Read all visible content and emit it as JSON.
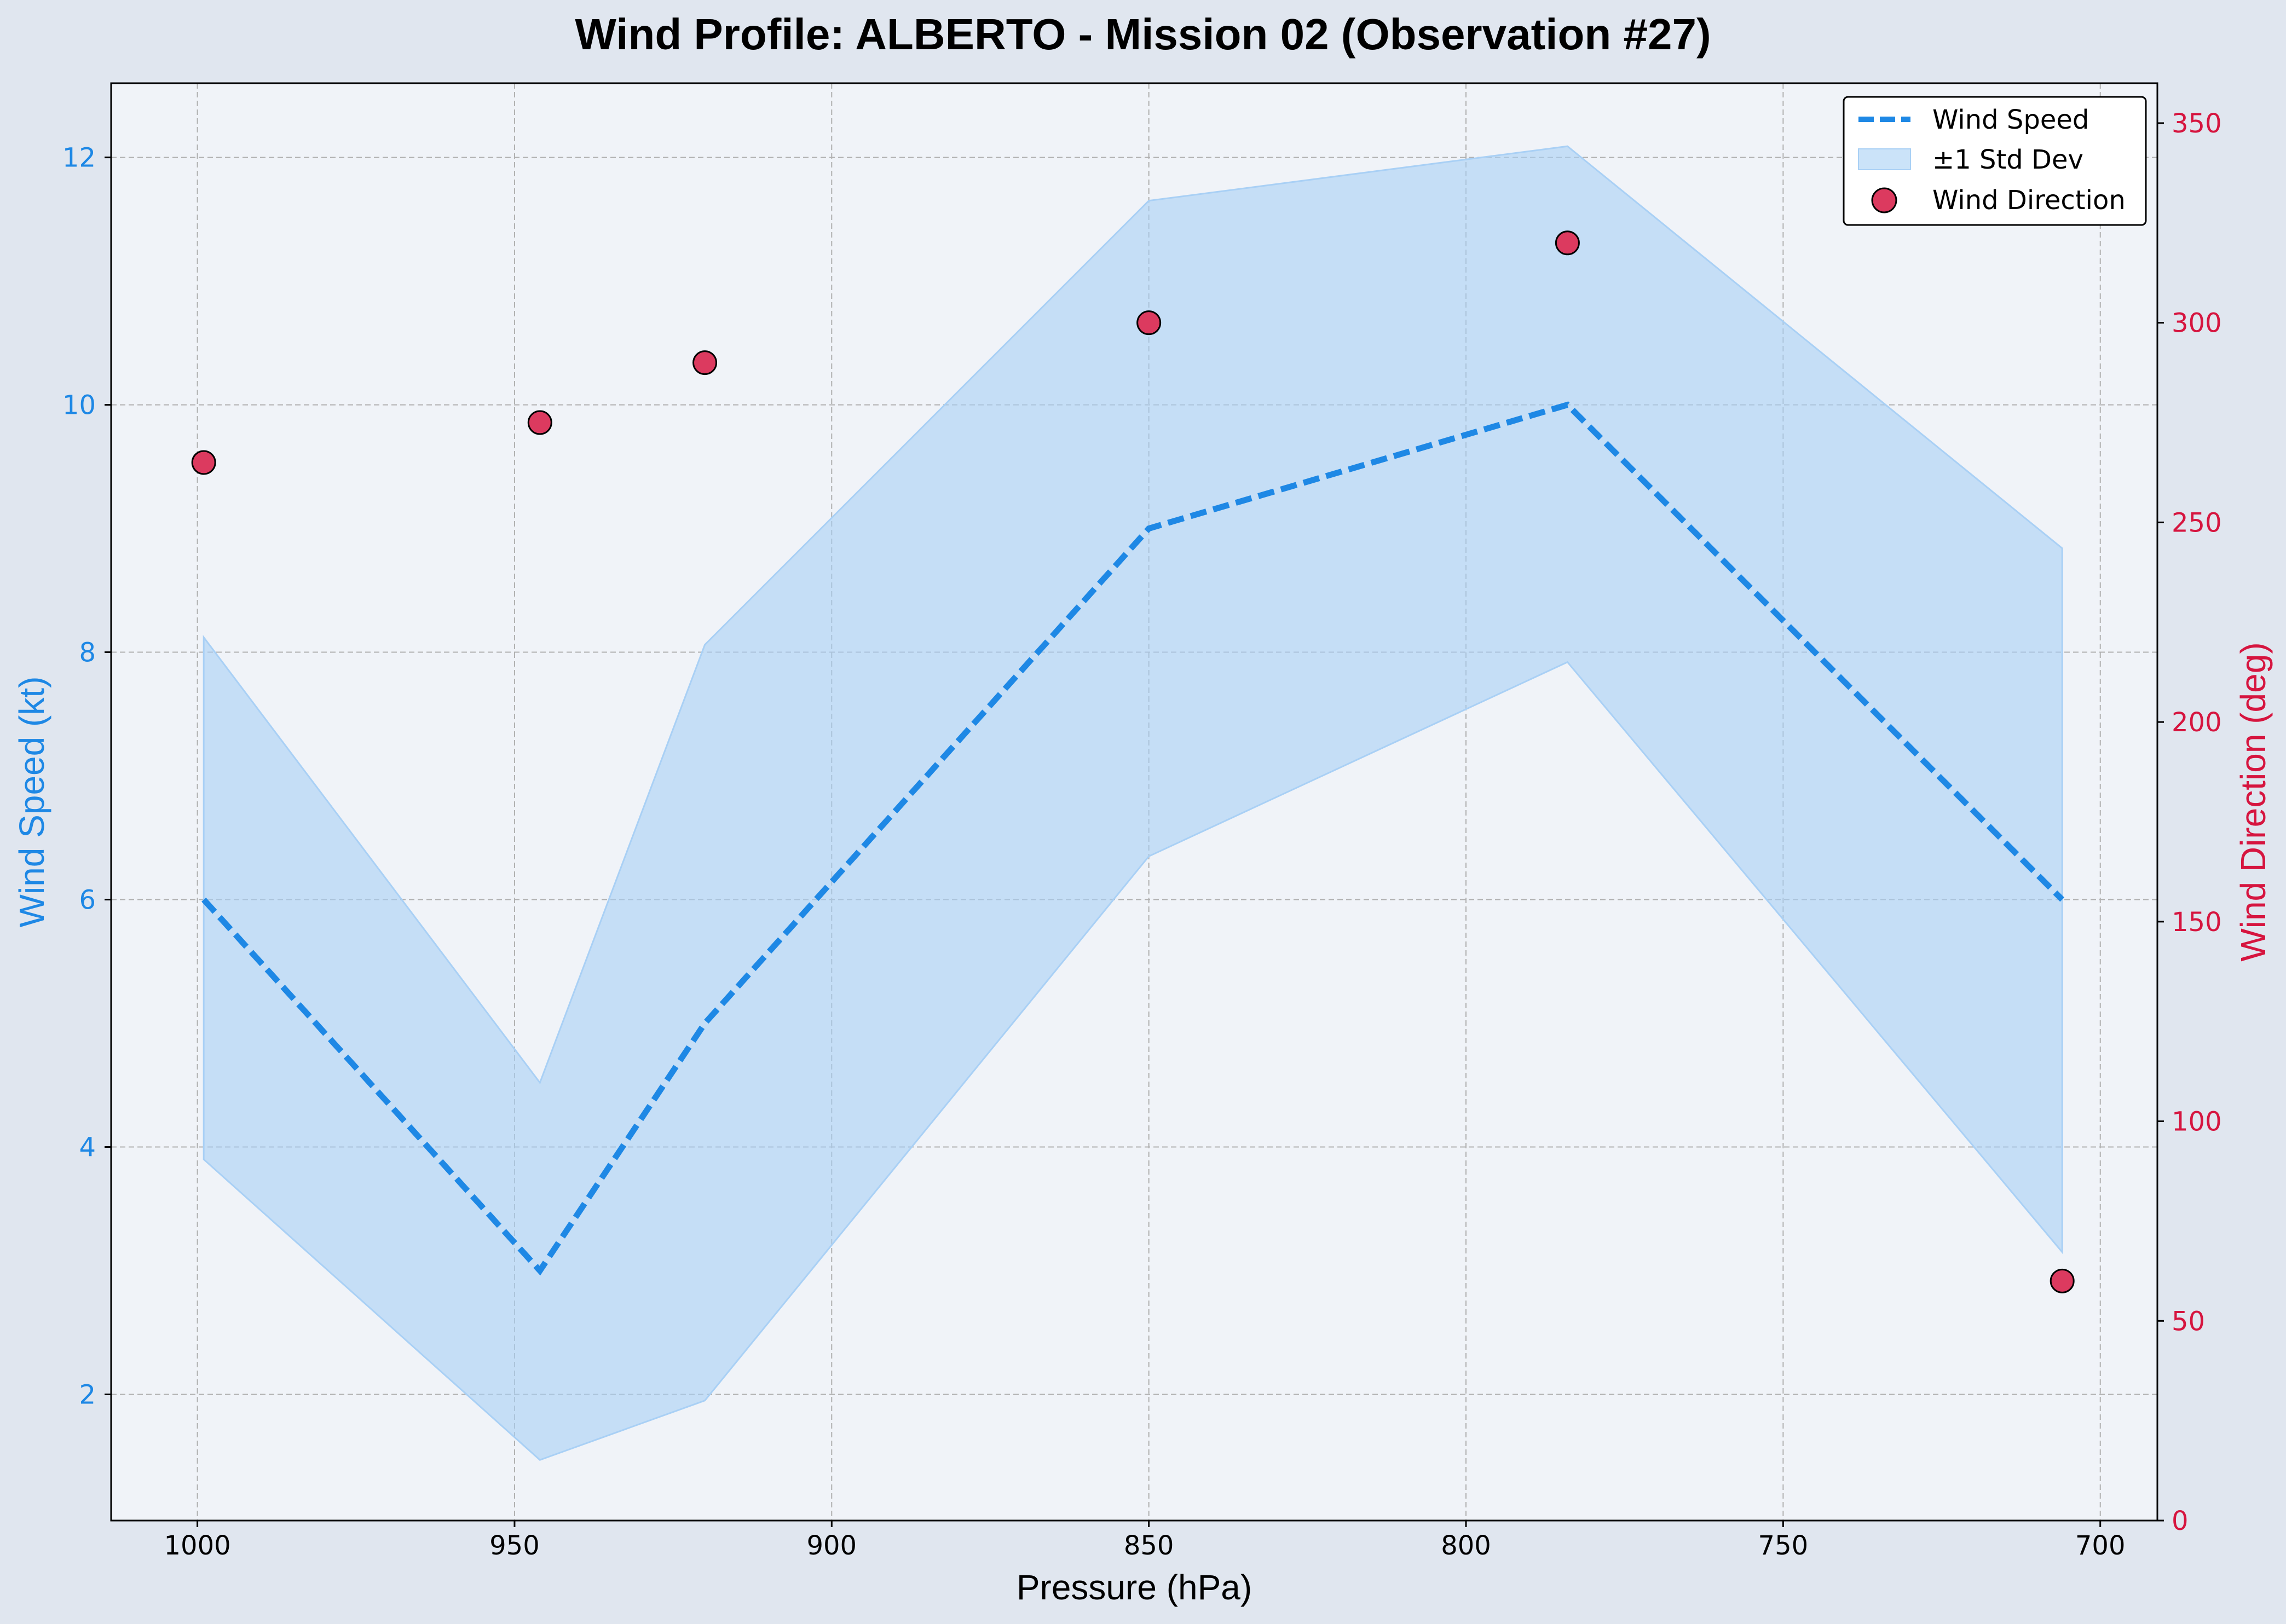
{
  "chart_data": {
    "type": "line",
    "title": "Wind Profile: ALBERTO - Mission 02 (Observation #27)",
    "xlabel": "Pressure (hPa)",
    "ylabel": "Wind Speed (kt)",
    "y2label": "Wind Direction (deg)",
    "x_inverted": true,
    "xlim": [
      1013.6,
      691.0
    ],
    "ylim": [
      0.98,
      12.6
    ],
    "y2lim": [
      0,
      360
    ],
    "x_ticks": [
      "1000",
      "950",
      "900",
      "850",
      "800",
      "750",
      "700"
    ],
    "y_ticks": [
      "2",
      "4",
      "6",
      "8",
      "10",
      "12"
    ],
    "y2_ticks": [
      "0",
      "50",
      "100",
      "150",
      "200",
      "250",
      "300",
      "350"
    ],
    "grid": true,
    "legend_position": "top-right",
    "colors": {
      "speed": "#1e88e5",
      "band": "#a9d0f5",
      "direction": "#dc3a5f",
      "direction_axis": "#d6153f",
      "background": "#f0f3f8",
      "figure": "#e0e6ef"
    },
    "x": [
      999,
      946,
      920,
      850,
      784,
      706
    ],
    "series": [
      {
        "name": "Wind Speed",
        "axis": "left",
        "values": [
          6,
          3,
          5,
          9,
          10,
          6
        ],
        "lower": [
          3.9,
          1.47,
          1.95,
          6.35,
          7.92,
          3.15
        ],
        "upper": [
          8.12,
          4.52,
          8.06,
          11.65,
          12.09,
          8.84
        ]
      },
      {
        "name": "Wind Direction",
        "axis": "right",
        "values": [
          265,
          275,
          290,
          300,
          320,
          60
        ]
      }
    ],
    "legend": [
      {
        "label": "Wind Speed",
        "kind": "line"
      },
      {
        "label": "±1 Std Dev",
        "kind": "band"
      },
      {
        "label": "Wind Direction",
        "kind": "marker"
      }
    ]
  }
}
